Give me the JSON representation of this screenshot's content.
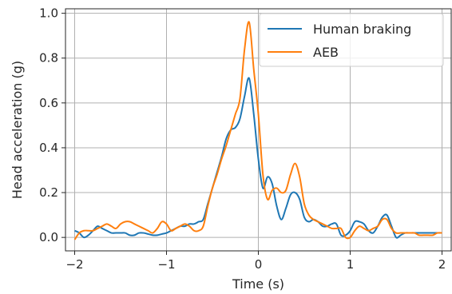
{
  "chart_data": {
    "type": "line",
    "xlabel": "Time (s)",
    "ylabel": "Head acceleration (g)",
    "xlim": [
      -2.1,
      2.1
    ],
    "ylim": [
      -0.06,
      1.02
    ],
    "grid": true,
    "legend_position": "top-right",
    "x_ticks": [
      -2,
      -1,
      0,
      1,
      2
    ],
    "x_tick_labels": [
      "−2",
      "−1",
      "0",
      "1",
      "2"
    ],
    "y_ticks": [
      0.0,
      0.2,
      0.4,
      0.6,
      0.8,
      1.0
    ],
    "y_tick_labels": [
      "0.0",
      "0.2",
      "0.4",
      "0.6",
      "0.8",
      "1.0"
    ],
    "series": [
      {
        "name": "Human braking",
        "color": "#1f77b4",
        "x": [
          -2.0,
          -1.95,
          -1.9,
          -1.85,
          -1.8,
          -1.75,
          -1.7,
          -1.65,
          -1.6,
          -1.55,
          -1.5,
          -1.45,
          -1.4,
          -1.35,
          -1.3,
          -1.25,
          -1.2,
          -1.15,
          -1.1,
          -1.05,
          -1.0,
          -0.95,
          -0.9,
          -0.85,
          -0.8,
          -0.75,
          -0.7,
          -0.65,
          -0.6,
          -0.55,
          -0.5,
          -0.45,
          -0.4,
          -0.35,
          -0.3,
          -0.25,
          -0.2,
          -0.15,
          -0.1,
          -0.05,
          0.0,
          0.05,
          0.1,
          0.15,
          0.2,
          0.25,
          0.3,
          0.35,
          0.4,
          0.45,
          0.5,
          0.55,
          0.6,
          0.65,
          0.7,
          0.75,
          0.8,
          0.85,
          0.9,
          0.95,
          1.0,
          1.05,
          1.1,
          1.15,
          1.2,
          1.25,
          1.3,
          1.35,
          1.4,
          1.45,
          1.5,
          1.55,
          1.6,
          1.65,
          1.7,
          1.75,
          1.8,
          1.85,
          1.9,
          1.95,
          2.0
        ],
        "y": [
          0.03,
          0.02,
          0.0,
          0.01,
          0.03,
          0.05,
          0.04,
          0.03,
          0.02,
          0.02,
          0.02,
          0.02,
          0.01,
          0.01,
          0.02,
          0.02,
          0.015,
          0.01,
          0.01,
          0.015,
          0.02,
          0.03,
          0.04,
          0.05,
          0.05,
          0.06,
          0.06,
          0.07,
          0.08,
          0.15,
          0.22,
          0.29,
          0.36,
          0.44,
          0.48,
          0.49,
          0.53,
          0.63,
          0.71,
          0.55,
          0.35,
          0.22,
          0.27,
          0.24,
          0.14,
          0.08,
          0.13,
          0.19,
          0.2,
          0.17,
          0.09,
          0.07,
          0.08,
          0.07,
          0.05,
          0.05,
          0.06,
          0.06,
          0.01,
          0.01,
          0.03,
          0.07,
          0.07,
          0.06,
          0.03,
          0.02,
          0.05,
          0.09,
          0.1,
          0.05,
          0.0,
          0.01,
          0.02,
          0.02,
          0.02,
          0.02,
          0.02,
          0.02,
          0.02,
          0.02,
          0.02
        ]
      },
      {
        "name": "AEB",
        "color": "#ff7f0e",
        "x": [
          -2.0,
          -1.95,
          -1.9,
          -1.85,
          -1.8,
          -1.75,
          -1.7,
          -1.65,
          -1.6,
          -1.55,
          -1.5,
          -1.45,
          -1.4,
          -1.35,
          -1.3,
          -1.25,
          -1.2,
          -1.15,
          -1.1,
          -1.05,
          -1.0,
          -0.95,
          -0.9,
          -0.85,
          -0.8,
          -0.75,
          -0.7,
          -0.65,
          -0.6,
          -0.55,
          -0.5,
          -0.45,
          -0.4,
          -0.35,
          -0.3,
          -0.25,
          -0.2,
          -0.15,
          -0.1,
          -0.05,
          0.0,
          0.05,
          0.1,
          0.15,
          0.2,
          0.25,
          0.3,
          0.35,
          0.4,
          0.45,
          0.5,
          0.55,
          0.6,
          0.65,
          0.7,
          0.75,
          0.8,
          0.85,
          0.9,
          0.95,
          1.0,
          1.05,
          1.1,
          1.15,
          1.2,
          1.25,
          1.3,
          1.35,
          1.4,
          1.45,
          1.5,
          1.55,
          1.6,
          1.65,
          1.7,
          1.75,
          1.8,
          1.85,
          1.9,
          1.95,
          2.0
        ],
        "y": [
          -0.01,
          0.02,
          0.03,
          0.03,
          0.03,
          0.04,
          0.05,
          0.06,
          0.05,
          0.04,
          0.06,
          0.07,
          0.07,
          0.06,
          0.05,
          0.04,
          0.03,
          0.02,
          0.04,
          0.07,
          0.06,
          0.03,
          0.04,
          0.05,
          0.06,
          0.05,
          0.03,
          0.03,
          0.05,
          0.14,
          0.22,
          0.28,
          0.35,
          0.41,
          0.48,
          0.55,
          0.62,
          0.84,
          0.96,
          0.75,
          0.55,
          0.28,
          0.17,
          0.21,
          0.22,
          0.2,
          0.21,
          0.28,
          0.33,
          0.27,
          0.15,
          0.1,
          0.08,
          0.07,
          0.06,
          0.05,
          0.04,
          0.04,
          0.04,
          0.0,
          0.0,
          0.03,
          0.05,
          0.04,
          0.03,
          0.04,
          0.05,
          0.08,
          0.08,
          0.04,
          0.02,
          0.02,
          0.02,
          0.02,
          0.02,
          0.01,
          0.01,
          0.01,
          0.01,
          0.02,
          0.02
        ]
      }
    ]
  }
}
